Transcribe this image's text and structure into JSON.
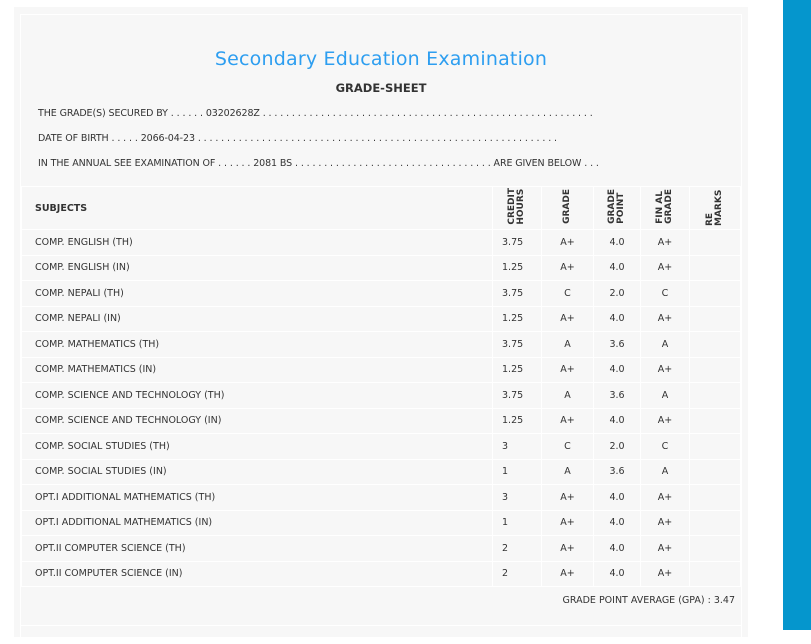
{
  "header": {
    "title": "Secondary Education Examination",
    "subtitle": "GRADE-SHEET"
  },
  "info": {
    "secured_by": "THE GRADE(S) SECURED BY . . . . . . 03202628Z . . . . . . . . . . . . . . . . . . . . . . . . . . . . . . . . . . . . . . . . . . . . . . . . . . . . . . . . .",
    "dob": "DATE OF BIRTH . . . . . 2066-04-23 . . . . . . . . . . . . . . . . . . . . . . . . . . . . . . . . . . . . . . . . . . . . . . . . . . . . . . . . . . . . . .",
    "exam": "IN THE ANNUAL SEE EXAMINATION OF . . . . . . 2081 BS . . . . . . . . . . . . . . . . . . . . . . . . . . . . . . . . . . ARE GIVEN BELOW . . ."
  },
  "columns": {
    "subjects": "SUBJECTS",
    "credit": [
      "CREDIT",
      "HOURS"
    ],
    "grade": "GRADE",
    "point": [
      "GRADE",
      "POINT"
    ],
    "final": [
      "FIN AL",
      "GRADE"
    ],
    "remarks": "RE MARKS"
  },
  "rows": [
    {
      "subject": "COMP. ENGLISH (TH)",
      "credit": "3.75",
      "grade": "A+",
      "point": "4.0",
      "final": "A+"
    },
    {
      "subject": "COMP. ENGLISH (IN)",
      "credit": "1.25",
      "grade": "A+",
      "point": "4.0",
      "final": "A+"
    },
    {
      "subject": "COMP. NEPALI (TH)",
      "credit": "3.75",
      "grade": "C",
      "point": "2.0",
      "final": "C"
    },
    {
      "subject": "COMP. NEPALI (IN)",
      "credit": "1.25",
      "grade": "A+",
      "point": "4.0",
      "final": "A+"
    },
    {
      "subject": "COMP. MATHEMATICS (TH)",
      "credit": "3.75",
      "grade": "A",
      "point": "3.6",
      "final": "A"
    },
    {
      "subject": "COMP. MATHEMATICS (IN)",
      "credit": "1.25",
      "grade": "A+",
      "point": "4.0",
      "final": "A+"
    },
    {
      "subject": "COMP. SCIENCE AND TECHNOLOGY (TH)",
      "credit": "3.75",
      "grade": "A",
      "point": "3.6",
      "final": "A"
    },
    {
      "subject": "COMP. SCIENCE AND TECHNOLOGY (IN)",
      "credit": "1.25",
      "grade": "A+",
      "point": "4.0",
      "final": "A+"
    },
    {
      "subject": "COMP. SOCIAL STUDIES (TH)",
      "credit": "3",
      "grade": "C",
      "point": "2.0",
      "final": "C"
    },
    {
      "subject": "COMP. SOCIAL STUDIES (IN)",
      "credit": "1",
      "grade": "A",
      "point": "3.6",
      "final": "A"
    },
    {
      "subject": "OPT.I ADDITIONAL MATHEMATICS (TH)",
      "credit": "3",
      "grade": "A+",
      "point": "4.0",
      "final": "A+"
    },
    {
      "subject": "OPT.I ADDITIONAL MATHEMATICS (IN)",
      "credit": "1",
      "grade": "A+",
      "point": "4.0",
      "final": "A+"
    },
    {
      "subject": "OPT.II COMPUTER SCIENCE (TH)",
      "credit": "2",
      "grade": "A+",
      "point": "4.0",
      "final": "A+"
    },
    {
      "subject": "OPT.II COMPUTER SCIENCE (IN)",
      "credit": "2",
      "grade": "A+",
      "point": "4.0",
      "final": "A+"
    }
  ],
  "footer": {
    "gpa": "GRADE POINT AVERAGE (GPA) : 3.47"
  },
  "colors": {
    "title": "#2d9ef0",
    "sidebar": "#0596cd",
    "panel": "#f7f7f7"
  }
}
